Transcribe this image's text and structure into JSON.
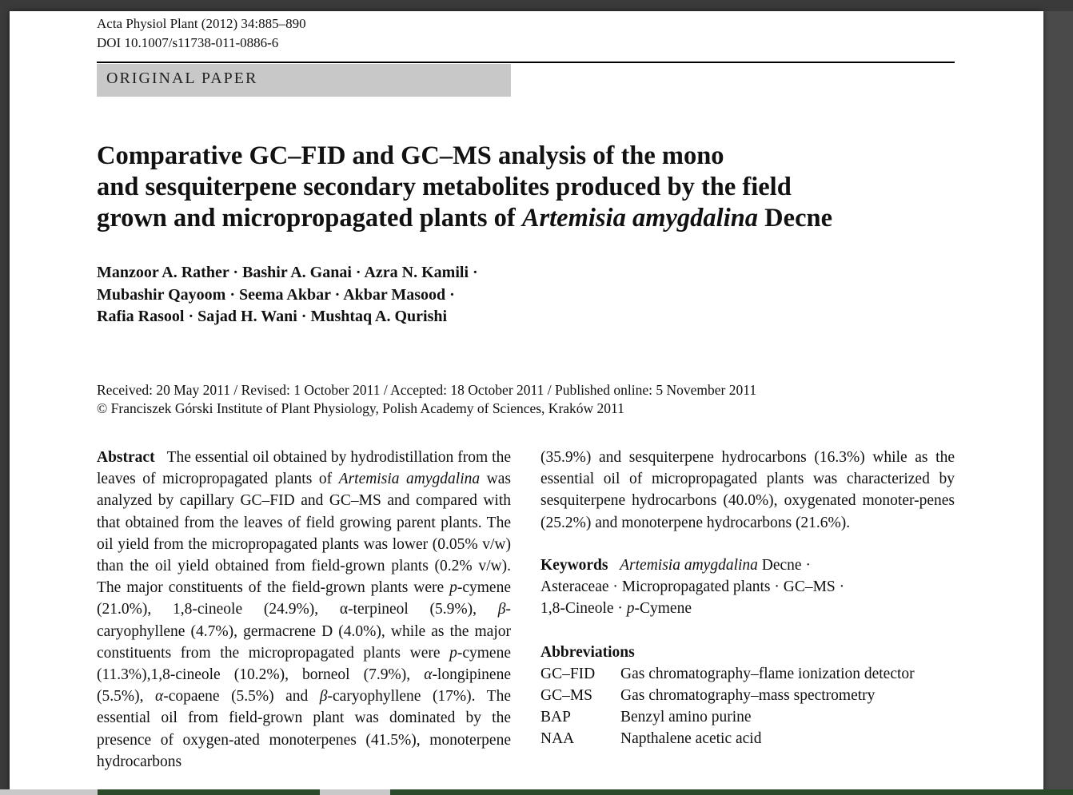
{
  "journal": {
    "citation": "Acta Physiol Plant (2012) 34:885–890",
    "doi": "DOI 10.1007/s11738-011-0886-6"
  },
  "badge": "ORIGINAL PAPER",
  "title": {
    "line1": "Comparative GC–FID and GC–MS analysis of the mono",
    "line2": "and sesquiterpene secondary metabolites produced by the field",
    "line3_prefix": "grown and micropropagated plants of ",
    "line3_species": "Artemisia amygdalina",
    "line3_suffix": " Decne"
  },
  "authors": [
    "Manzoor A. Rather · Bashir A. Ganai · Azra N. Kamili ·",
    "Mubashir Qayoom · Seema Akbar · Akbar Masood ·",
    "Rafia Rasool · Sajad H. Wani · Mushtaq A. Qurishi"
  ],
  "dates": {
    "history": "Received: 20 May 2011 / Revised: 1 October 2011 / Accepted: 18 October 2011 / Published online: 5 November 2011",
    "copyright": "© Franciszek Górski Institute of Plant Physiology, Polish Academy of Sciences, Kraków 2011"
  },
  "abstract": {
    "label": "Abstract",
    "p1": "The essential oil obtained by hydrodistillation from the leaves of micropropagated plants of ",
    "sp1": "Artemisia amygdalina",
    "p2": " was analyzed by capillary GC–FID and GC–MS and compared with that obtained from the leaves of field growing parent plants. The oil yield from the micropropagated plants was lower (0.05% v/w) than the oil yield obtained from field-grown plants (0.2% v/w). The major constituents of the field-grown plants were ",
    "p_1": "p",
    "p3": "-cymene (21.0%), 1,8-cineole (24.9%), α-terpineol (5.9%), ",
    "beta1": "β",
    "p4": "-caryophyllene (4.7%), germacrene D (4.0%), while as the major constituents from the micropropagated plants were ",
    "p_2": "p",
    "p5": "-cymene (11.3%),1,8-cineole (10.2%), borneol (7.9%), ",
    "alpha1": "α",
    "p6": "-longipinene (5.5%), ",
    "alpha2": "α",
    "p7": "-copaene (5.5%) and ",
    "beta2": "β",
    "p8": "-caryophyllene (17%). The essential oil from field-grown plant was dominated by the presence of oxygen-ated monoterpenes (41.5%), monoterpene hydrocarbons",
    "p9": "(35.9%) and sesquiterpene hydrocarbons (16.3%) while as the essential oil of micropropagated plants was characterized by sesquiterpene hydrocarbons (40.0%), oxygenated monoter-penes (25.2%) and monoterpene hydrocarbons (21.6%)."
  },
  "keywords": {
    "label": "Keywords",
    "k1": "Artemisia amygdalina",
    "k1_suffix": " Decne ·",
    "k2": "Asteraceae · Micropropagated plants · GC–MS ·",
    "k3_prefix": "1,8-Cineole · ",
    "k3_p": "p",
    "k3_suffix": "-Cymene"
  },
  "abbreviations": {
    "label": "Abbreviations",
    "items": [
      {
        "key": "GC–FID",
        "value": "Gas chromatography–flame ionization detector"
      },
      {
        "key": "GC–MS",
        "value": "Gas chromatography–mass spectrometry"
      },
      {
        "key": "BAP",
        "value": "Benzyl amino purine"
      },
      {
        "key": "NAA",
        "value": "Napthalene acetic acid"
      }
    ]
  }
}
